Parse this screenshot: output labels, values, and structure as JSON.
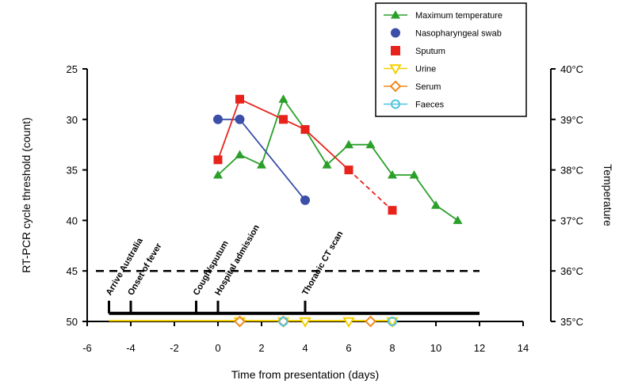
{
  "chart_data": {
    "type": "line",
    "xlabel": "Time from presentation (days)",
    "ylabel": "RT-PCR cycle threshold (count)",
    "y2label": "Temperature",
    "xlim": [
      -6,
      14
    ],
    "ylim": [
      25,
      50
    ],
    "y2lim": [
      35,
      40
    ],
    "x_ticks": [
      -6,
      -4,
      -2,
      0,
      2,
      4,
      6,
      8,
      10,
      12,
      14
    ],
    "y_ticks": [
      25,
      30,
      35,
      40,
      45,
      50
    ],
    "y2_ticks": [
      "40°C",
      "39°C",
      "38°C",
      "37°C",
      "36°C",
      "35°C"
    ],
    "y2_tick_values": [
      40,
      39,
      38,
      37,
      36,
      35
    ],
    "legend_position": "top-right",
    "series": [
      {
        "name": "Maximum temperature",
        "axis": "right",
        "color": "#2aa02a",
        "marker": "triangle",
        "x": [
          0,
          1,
          2,
          3,
          4,
          5,
          6,
          7,
          8,
          9,
          10,
          11
        ],
        "y": [
          37.9,
          38.3,
          38.1,
          39.4,
          38.8,
          38.1,
          38.5,
          38.5,
          37.9,
          37.9,
          37.3,
          37.0
        ]
      },
      {
        "name": "Nasopharyngeal swab",
        "axis": "left",
        "color": "#3b4fa8",
        "marker": "circle",
        "x": [
          0,
          1,
          4
        ],
        "y": [
          30,
          30,
          38
        ]
      },
      {
        "name": "Sputum",
        "axis": "left",
        "color": "#e8231c",
        "marker": "square",
        "x": [
          0,
          1,
          3,
          4,
          6,
          8
        ],
        "y": [
          34,
          28,
          30,
          31,
          35,
          39
        ],
        "dashed_from_index": 4
      },
      {
        "name": "Urine",
        "axis": "left",
        "color": "#f5d000",
        "marker": "triangle-down",
        "x": [
          1,
          3,
          4,
          6,
          8
        ],
        "y": [
          50,
          50,
          50,
          50,
          50
        ]
      },
      {
        "name": "Serum",
        "axis": "left",
        "color": "#f08a1c",
        "marker": "diamond",
        "x": [
          1,
          3,
          7
        ],
        "y": [
          50,
          50,
          50
        ]
      },
      {
        "name": "Faeces",
        "axis": "left",
        "color": "#4fc3e0",
        "marker": "circle-open",
        "x": [
          3,
          8
        ],
        "y": [
          50,
          50
        ]
      }
    ],
    "events": [
      {
        "label": "Arrive Australia",
        "x": -5
      },
      {
        "label": "Onset of fever",
        "x": -4
      },
      {
        "label": "Cough/sputum",
        "x": -1
      },
      {
        "label": "Hospital admission",
        "x": 0
      },
      {
        "label": "Thoracic CT scan",
        "x": 4
      }
    ],
    "temperature_reference": {
      "value": 36,
      "style": "dashed"
    }
  }
}
